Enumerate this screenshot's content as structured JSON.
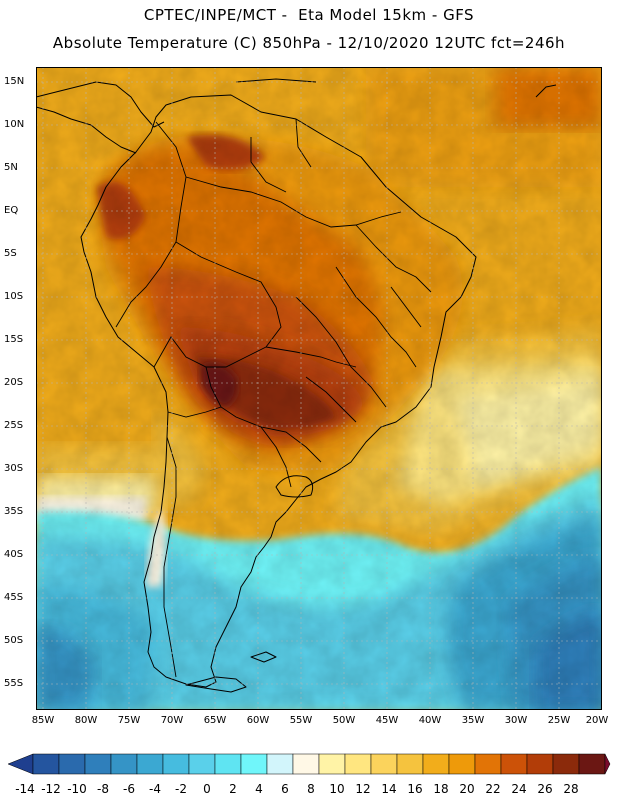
{
  "header": {
    "line1": "CPTEC/INPE/MCT -  Eta Model 15km - GFS",
    "line2": "Absolute Temperature (C) 850hPa - 12/10/2020 12UTC fct=246h"
  },
  "map": {
    "lat_labels": [
      "15N",
      "10N",
      "5N",
      "EQ",
      "5S",
      "10S",
      "15S",
      "20S",
      "25S",
      "30S",
      "35S",
      "40S",
      "45S",
      "50S",
      "55S"
    ],
    "lon_labels": [
      "85W",
      "80W",
      "75W",
      "70W",
      "65W",
      "60W",
      "55W",
      "50W",
      "45W",
      "40W",
      "35W",
      "30W",
      "25W",
      "20W"
    ]
  },
  "colorbar": {
    "labels": [
      "-14",
      "-12",
      "-10",
      "-8",
      "-6",
      "-4",
      "-2",
      "0",
      "2",
      "4",
      "6",
      "8",
      "10",
      "12",
      "14",
      "16",
      "18",
      "20",
      "22",
      "24",
      "26",
      "28"
    ],
    "colors": [
      "#1f3f8f",
      "#24559f",
      "#2a6aad",
      "#2f7fbb",
      "#3594c6",
      "#3ba8d2",
      "#46bcdf",
      "#5ad0ea",
      "#5fe4f2",
      "#70f6fa",
      "#d2f5fb",
      "#fff8e6",
      "#fff3a6",
      "#ffe680",
      "#fbd35c",
      "#f5c33e",
      "#f2ad1b",
      "#ee9a0a",
      "#e27406",
      "#cc5208",
      "#b23d08",
      "#8b2a0b",
      "#6b1713",
      "#7a0b2b"
    ]
  }
}
